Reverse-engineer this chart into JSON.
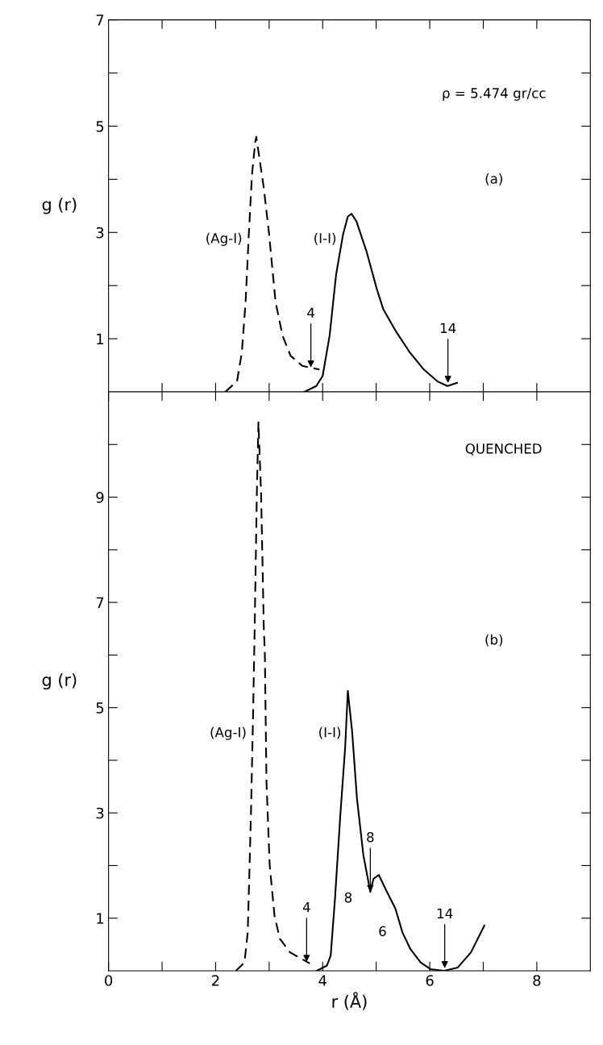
{
  "chart_data": [
    {
      "type": "line",
      "ylabel": "g (r)",
      "xlim": [
        0,
        9
      ],
      "ylim": [
        0,
        7
      ],
      "xticks": [
        {
          "value": 1,
          "label": null
        },
        {
          "value": 2,
          "label": null
        },
        {
          "value": 3,
          "label": null
        },
        {
          "value": 4,
          "label": null
        },
        {
          "value": 5,
          "label": null
        },
        {
          "value": 6,
          "label": null
        },
        {
          "value": 7,
          "label": null
        },
        {
          "value": 8,
          "label": null
        }
      ],
      "yticks": [
        1,
        {
          "value": 2,
          "label": null
        },
        3,
        {
          "value": 4,
          "label": null
        },
        5,
        {
          "value": 6,
          "label": null
        },
        7
      ],
      "tick_labels": "y",
      "grid": false,
      "legend": false,
      "marker": "none",
      "series": [
        {
          "name": "(Ag-I)",
          "color": "#000000",
          "line_style": "dashed",
          "x": [
            2.18,
            2.4,
            2.49,
            2.56,
            2.62,
            2.68,
            2.74,
            2.76,
            2.9,
            3.0,
            3.12,
            3.25,
            3.4,
            3.62,
            3.94
          ],
          "values": [
            0,
            0.2,
            0.74,
            1.69,
            2.96,
            4.09,
            4.7,
            4.8,
            3.84,
            2.96,
            1.69,
            1.06,
            0.68,
            0.49,
            0.42
          ]
        },
        {
          "name": "(I-I)",
          "color": "#000000",
          "line_style": "solid",
          "x": [
            3.66,
            3.88,
            4.0,
            4.13,
            4.25,
            4.38,
            4.47,
            4.54,
            4.63,
            4.82,
            5.01,
            5.13,
            5.38,
            5.63,
            5.89,
            6.14,
            6.33,
            6.51
          ],
          "values": [
            0,
            0.11,
            0.3,
            1.06,
            2.2,
            2.96,
            3.3,
            3.35,
            3.21,
            2.64,
            1.94,
            1.56,
            1.12,
            0.74,
            0.42,
            0.2,
            0.11,
            0.17
          ]
        }
      ],
      "annotations": [
        "ρ = 5.474 gr/cc",
        "(a)",
        {
          "text": "4",
          "x": 3.78,
          "y": 0.46
        },
        {
          "text": "14",
          "x": 6.34,
          "y": 0.17
        }
      ]
    },
    {
      "type": "line",
      "ylabel": "g (r)",
      "xlabel": "r (Å)",
      "xlim": [
        0,
        9
      ],
      "ylim": [
        0,
        11
      ],
      "xticks": [
        0,
        {
          "value": 1,
          "label": null
        },
        2,
        {
          "value": 3,
          "label": null
        },
        4,
        {
          "value": 5,
          "label": null
        },
        6,
        {
          "value": 7,
          "label": null
        },
        8
      ],
      "yticks": [
        1,
        {
          "value": 2,
          "label": null
        },
        3,
        {
          "value": 4,
          "label": null
        },
        5,
        {
          "value": 6,
          "label": null
        },
        7,
        {
          "value": 8,
          "label": null
        },
        9,
        {
          "value": 10,
          "label": null
        }
      ],
      "grid": false,
      "legend": false,
      "marker": "none",
      "series": [
        {
          "name": "(Ag-I)",
          "color": "#000000",
          "line_style": "dashed",
          "x": [
            2.38,
            2.54,
            2.6,
            2.66,
            2.7,
            2.73,
            2.77,
            2.8,
            2.85,
            2.9,
            2.92,
            2.95,
            3.01,
            3.1,
            3.2,
            3.39,
            3.76
          ],
          "values": [
            0,
            0.16,
            0.73,
            2.96,
            4.87,
            6.53,
            9.06,
            10.42,
            9.06,
            6.53,
            6.02,
            3.6,
            2.01,
            1.05,
            0.61,
            0.35,
            0.14
          ]
        },
        {
          "name": "(I-I)",
          "color": "#000000",
          "line_style": "solid",
          "x": [
            3.89,
            4.08,
            4.15,
            4.23,
            4.33,
            4.42,
            4.47,
            4.55,
            4.64,
            4.76,
            4.89,
            4.95,
            5.05,
            5.2,
            5.36,
            5.49,
            5.64,
            5.83,
            6.02,
            6.27,
            6.52,
            6.77,
            7.02
          ],
          "values": [
            0,
            0.1,
            0.29,
            1.37,
            2.96,
            4.24,
            5.32,
            4.55,
            3.28,
            2.2,
            1.5,
            1.75,
            1.82,
            1.5,
            1.18,
            0.73,
            0.41,
            0.16,
            0.03,
            0,
            0.06,
            0.35,
            0.86
          ]
        }
      ],
      "annotations": [
        "QUENCHED",
        "(b)",
        {
          "text": "4",
          "x": 3.7,
          "y": 0.17
        },
        {
          "text": "8",
          "x": 4.23,
          "y": 1.37
        },
        {
          "text": "14",
          "x": 6.28,
          "y": 0.05
        },
        {
          "text": "8",
          "x": 4.89,
          "y": 1.5
        },
        {
          "text": "6",
          "x": 5.49,
          "y": 0.73
        }
      ]
    }
  ]
}
